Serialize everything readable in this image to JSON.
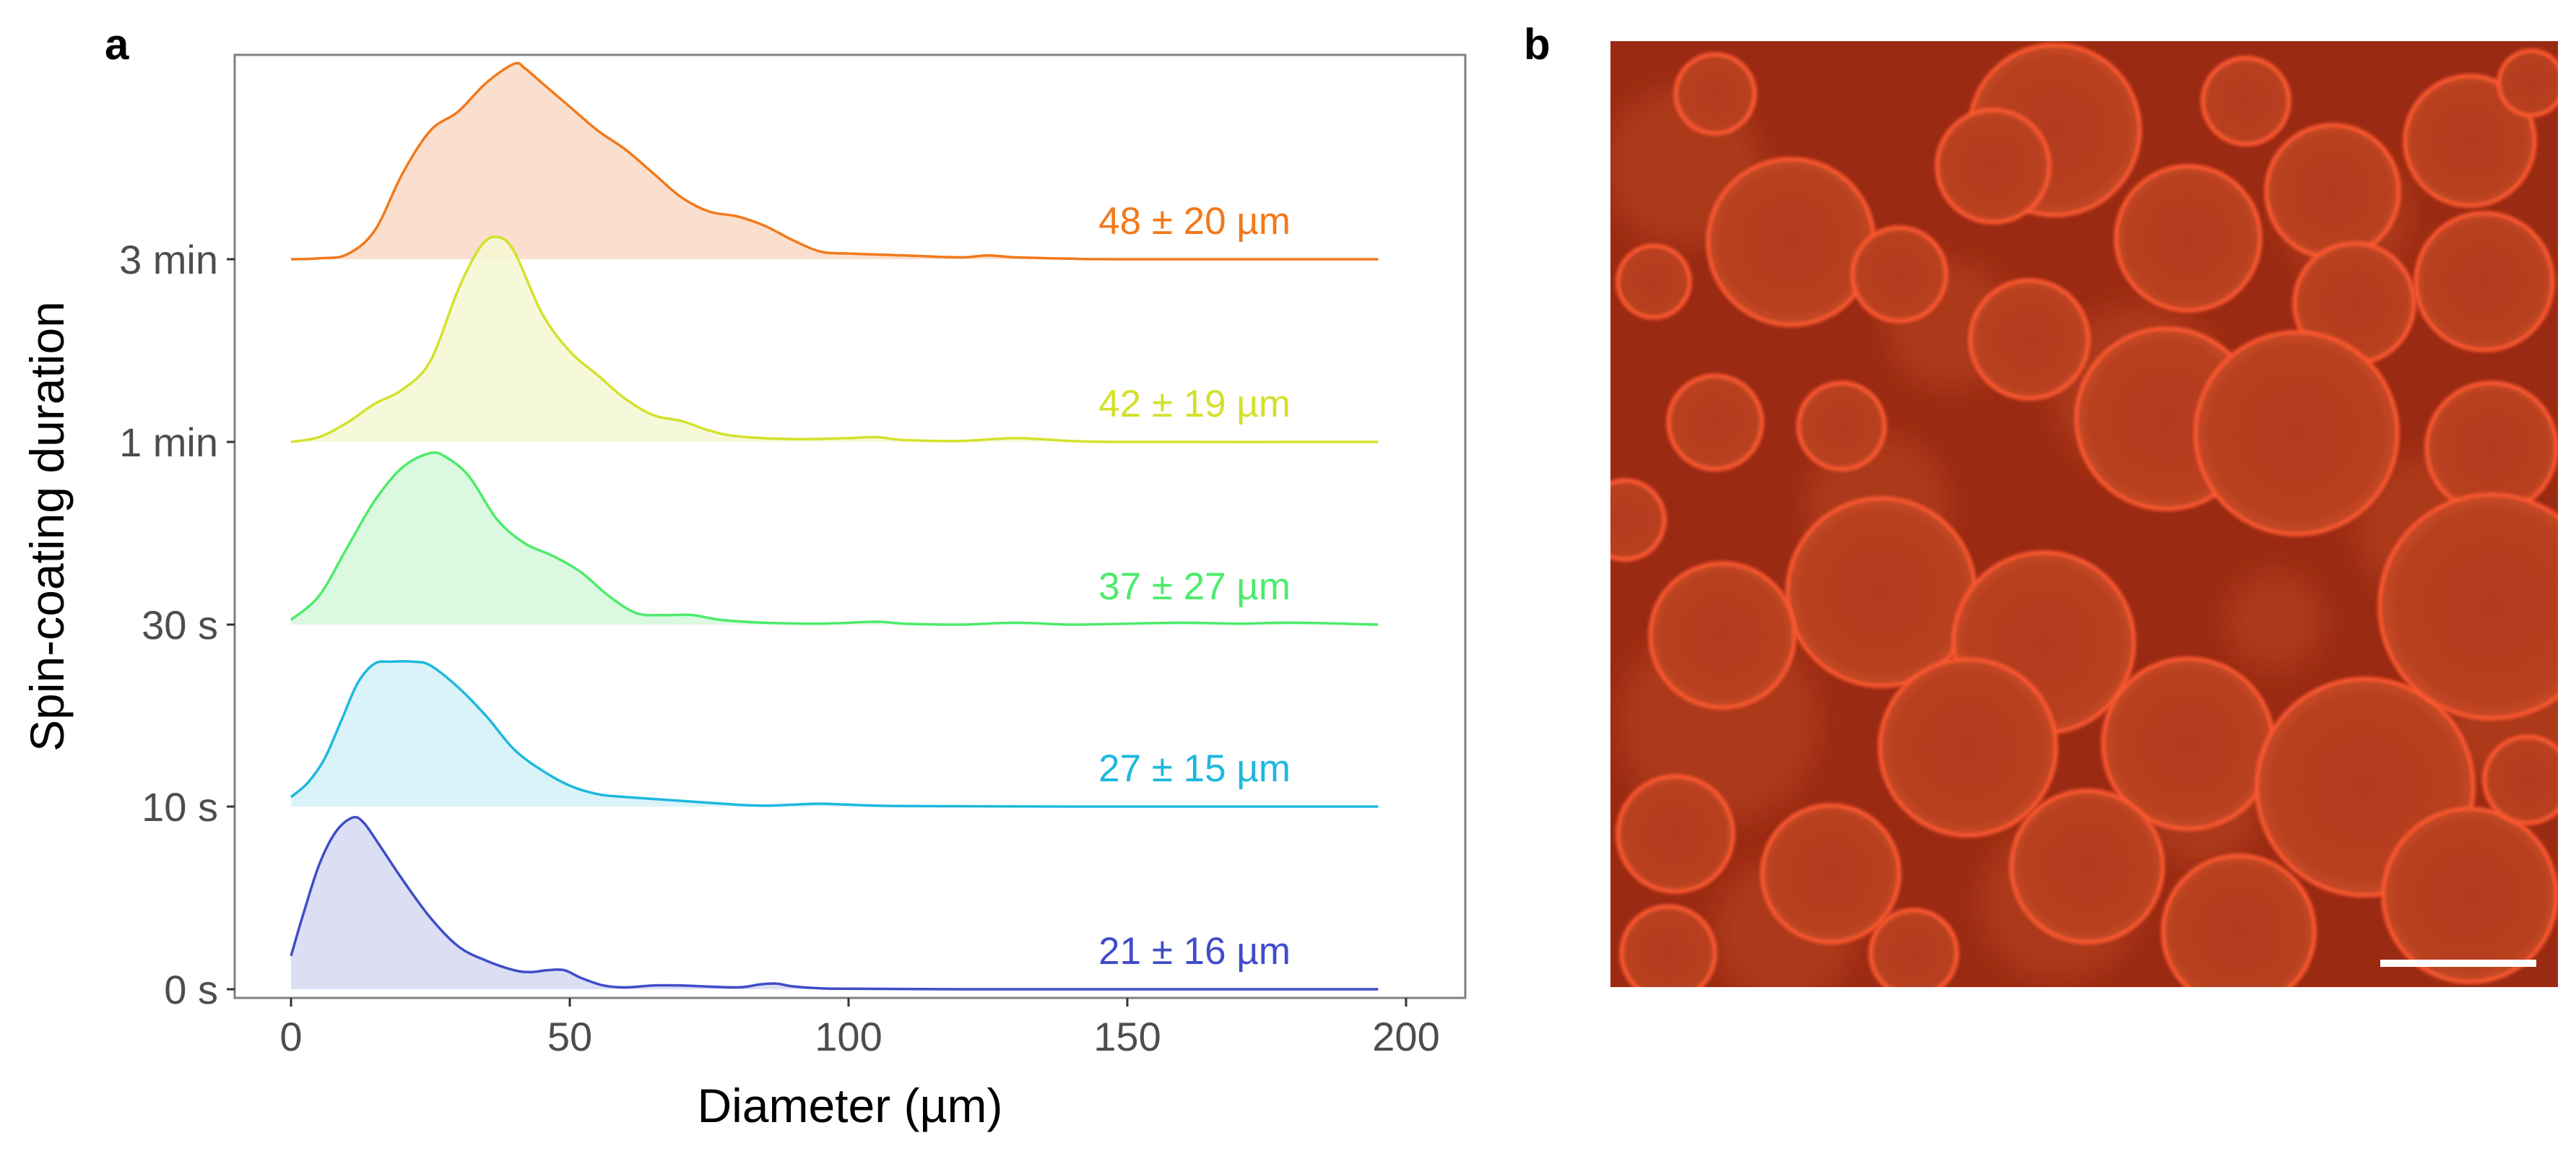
{
  "panels": {
    "a": "a",
    "b": "b"
  },
  "chart_data": {
    "type": "ridgeline",
    "xlabel": "Diameter (µm)",
    "ylabel": "Spin-coating duration",
    "xlim": [
      -10,
      210
    ],
    "x_ticks": [
      0,
      50,
      100,
      150,
      200
    ],
    "x_tick_labels": [
      "0",
      "50",
      "100",
      "150",
      "200"
    ],
    "grid": false,
    "series": [
      {
        "name": "0 s",
        "color": "#3F4DC8",
        "fill": "#D6D9F2",
        "annotation": "21 ± 16 µm",
        "x": [
          0,
          2,
          5,
          8,
          11,
          13,
          16,
          20,
          25,
          30,
          35,
          40,
          43,
          46,
          49,
          52,
          56,
          60,
          65,
          70,
          80,
          84,
          87,
          90,
          95,
          100,
          120,
          150,
          195
        ],
        "density": [
          0.35,
          0.75,
          1.3,
          1.65,
          1.8,
          1.75,
          1.5,
          1.15,
          0.75,
          0.45,
          0.3,
          0.2,
          0.18,
          0.2,
          0.2,
          0.12,
          0.04,
          0.02,
          0.04,
          0.04,
          0.02,
          0.05,
          0.06,
          0.03,
          0.01,
          0.005,
          0,
          0,
          0
        ]
      },
      {
        "name": "10 s",
        "color": "#1EB8DE",
        "fill": "#D4F1F8",
        "annotation": "27 ± 15 µm",
        "x": [
          0,
          3,
          6,
          9,
          12,
          15,
          18,
          22,
          25,
          30,
          35,
          40,
          45,
          50,
          55,
          60,
          70,
          80,
          85,
          90,
          95,
          100,
          110,
          140,
          195
        ],
        "density": [
          0.1,
          0.25,
          0.5,
          0.9,
          1.3,
          1.5,
          1.52,
          1.52,
          1.48,
          1.25,
          0.95,
          0.6,
          0.38,
          0.22,
          0.13,
          0.1,
          0.06,
          0.02,
          0.01,
          0.02,
          0.03,
          0.02,
          0.005,
          0,
          0
        ]
      },
      {
        "name": "30 s",
        "color": "#4DEB6B",
        "fill": "#D5F8DB",
        "annotation": "37 ± 27 µm",
        "x": [
          0,
          5,
          10,
          15,
          20,
          25,
          28,
          32,
          37,
          42,
          47,
          52,
          57,
          62,
          67,
          72,
          77,
          85,
          95,
          105,
          110,
          120,
          130,
          140,
          150,
          160,
          170,
          180,
          195
        ],
        "density": [
          0.05,
          0.3,
          0.8,
          1.3,
          1.65,
          1.8,
          1.75,
          1.55,
          1.1,
          0.85,
          0.72,
          0.55,
          0.3,
          0.12,
          0.1,
          0.1,
          0.05,
          0.02,
          0.01,
          0.03,
          0.01,
          0.0,
          0.02,
          0.0,
          0.01,
          0.02,
          0.01,
          0.02,
          0.0
        ]
      },
      {
        "name": "1 min",
        "color": "#D4E12B",
        "fill": "#F5F8D2",
        "annotation": "42 ± 19 µm",
        "x": [
          0,
          5,
          10,
          15,
          20,
          25,
          30,
          34,
          37,
          40,
          45,
          50,
          55,
          60,
          65,
          70,
          75,
          80,
          90,
          100,
          105,
          110,
          120,
          130,
          140,
          150,
          195
        ],
        "density": [
          0.0,
          0.05,
          0.2,
          0.4,
          0.55,
          0.85,
          1.6,
          2.05,
          2.15,
          2.0,
          1.35,
          0.95,
          0.7,
          0.45,
          0.28,
          0.22,
          0.12,
          0.06,
          0.03,
          0.04,
          0.05,
          0.02,
          0.01,
          0.04,
          0.01,
          0.0,
          0.0
        ]
      },
      {
        "name": "3 min",
        "color": "#F2791B",
        "fill": "#FAD9C6",
        "annotation": "48 ± 20 µm",
        "x": [
          0,
          5,
          10,
          15,
          20,
          25,
          30,
          35,
          40,
          42,
          45,
          50,
          55,
          60,
          65,
          70,
          75,
          80,
          85,
          90,
          95,
          100,
          110,
          120,
          125,
          130,
          140,
          150,
          195
        ],
        "density": [
          0.0,
          0.01,
          0.05,
          0.3,
          0.9,
          1.35,
          1.55,
          1.85,
          2.05,
          2.0,
          1.85,
          1.6,
          1.35,
          1.15,
          0.9,
          0.65,
          0.5,
          0.45,
          0.35,
          0.2,
          0.08,
          0.06,
          0.04,
          0.02,
          0.04,
          0.02,
          0.005,
          0.0,
          0.0
        ]
      }
    ]
  },
  "micrograph": {
    "background_color": "#9B2A12",
    "rim_color": "#FF5A30",
    "scale_bar_color": "#FFFFFF"
  }
}
